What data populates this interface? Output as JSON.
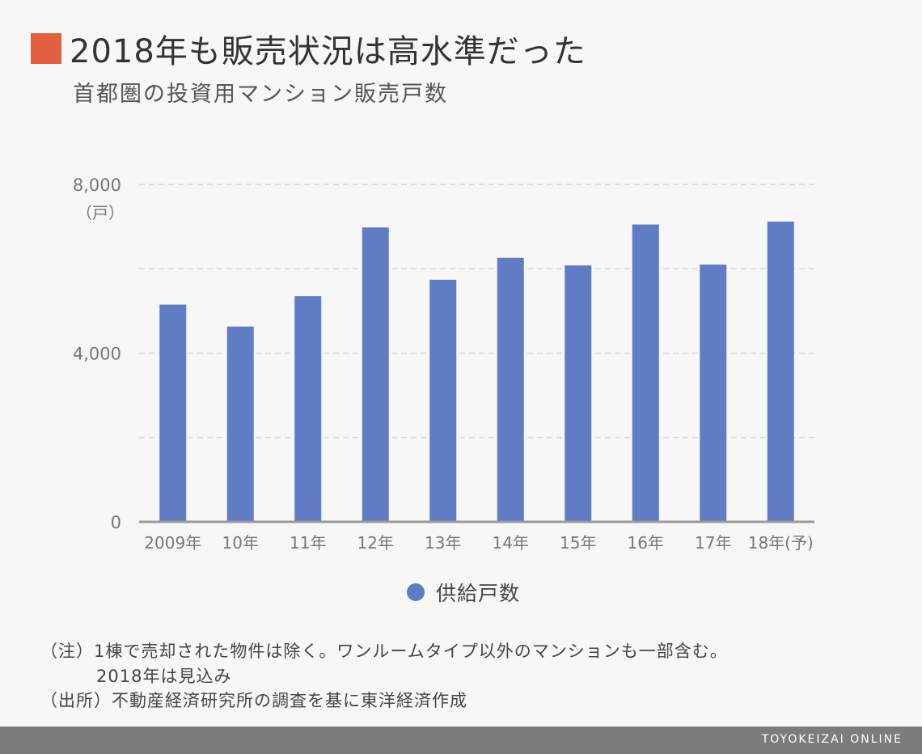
{
  "title": "2018年も販売状況は高水準だった",
  "subtitle": "首都圏の投資用マンション販売戸数",
  "chart_data": {
    "type": "bar",
    "categories": [
      "2009年",
      "10年",
      "11年",
      "12年",
      "13年",
      "14年",
      "15年",
      "16年",
      "17年",
      "18年(予)"
    ],
    "series": [
      {
        "name": "供給戸数",
        "values": [
          5150,
          4630,
          5350,
          6980,
          5740,
          6260,
          6080,
          7050,
          6100,
          7120
        ]
      }
    ],
    "ylim": [
      0,
      8000
    ],
    "yticks": [
      0,
      2000,
      4000,
      6000,
      8000
    ],
    "ytick_labels": [
      "0",
      "",
      "4,000",
      "",
      "8,000"
    ],
    "yunit": "（戸）",
    "legend_position": "bottom-center",
    "color": "#5f7cc4"
  },
  "notes": {
    "line1": "（注）1棟で売却された物件は除く。ワンルームタイプ以外のマンションも一部含む。",
    "line2": "2018年は見込み",
    "line3": "（出所）不動産経済研究所の調査を基に東洋経済作成"
  },
  "footer": "TOYOKEIZAI ONLINE",
  "colors": {
    "accent": "#e2603f",
    "bar": "#5f7cc4",
    "footer": "#7c7c7c"
  }
}
